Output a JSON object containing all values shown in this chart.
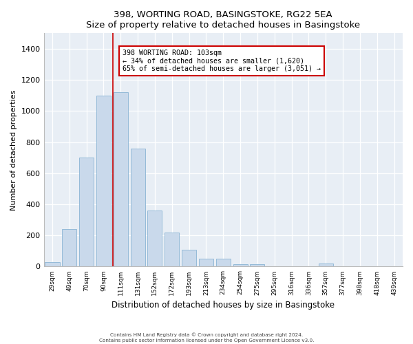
{
  "title": "398, WORTING ROAD, BASINGSTOKE, RG22 5EA",
  "subtitle": "Size of property relative to detached houses in Basingstoke",
  "xlabel": "Distribution of detached houses by size in Basingstoke",
  "ylabel": "Number of detached properties",
  "categories": [
    "29sqm",
    "49sqm",
    "70sqm",
    "90sqm",
    "111sqm",
    "131sqm",
    "152sqm",
    "172sqm",
    "193sqm",
    "213sqm",
    "234sqm",
    "254sqm",
    "275sqm",
    "295sqm",
    "316sqm",
    "336sqm",
    "357sqm",
    "377sqm",
    "398sqm",
    "418sqm",
    "439sqm"
  ],
  "bar_heights": [
    28,
    240,
    700,
    1100,
    1120,
    760,
    360,
    220,
    110,
    50,
    50,
    15,
    15,
    0,
    0,
    0,
    18,
    0,
    0,
    0,
    0
  ],
  "bar_color": "#c9d9eb",
  "bar_edge_color": "#8ab4d4",
  "background_color": "#e8eef5",
  "grid_color": "#ffffff",
  "annotation_box_color": "#cc0000",
  "annotation_text": "398 WORTING ROAD: 103sqm\n← 34% of detached houses are smaller (1,620)\n65% of semi-detached houses are larger (3,051) →",
  "footer_line1": "Contains HM Land Registry data © Crown copyright and database right 2024.",
  "footer_line2": "Contains public sector information licensed under the Open Government Licence v3.0.",
  "ylim": [
    0,
    1500
  ],
  "yticks": [
    0,
    200,
    400,
    600,
    800,
    1000,
    1200,
    1400
  ],
  "red_line_x": 3.55,
  "figwidth": 6.0,
  "figheight": 5.0,
  "dpi": 100
}
